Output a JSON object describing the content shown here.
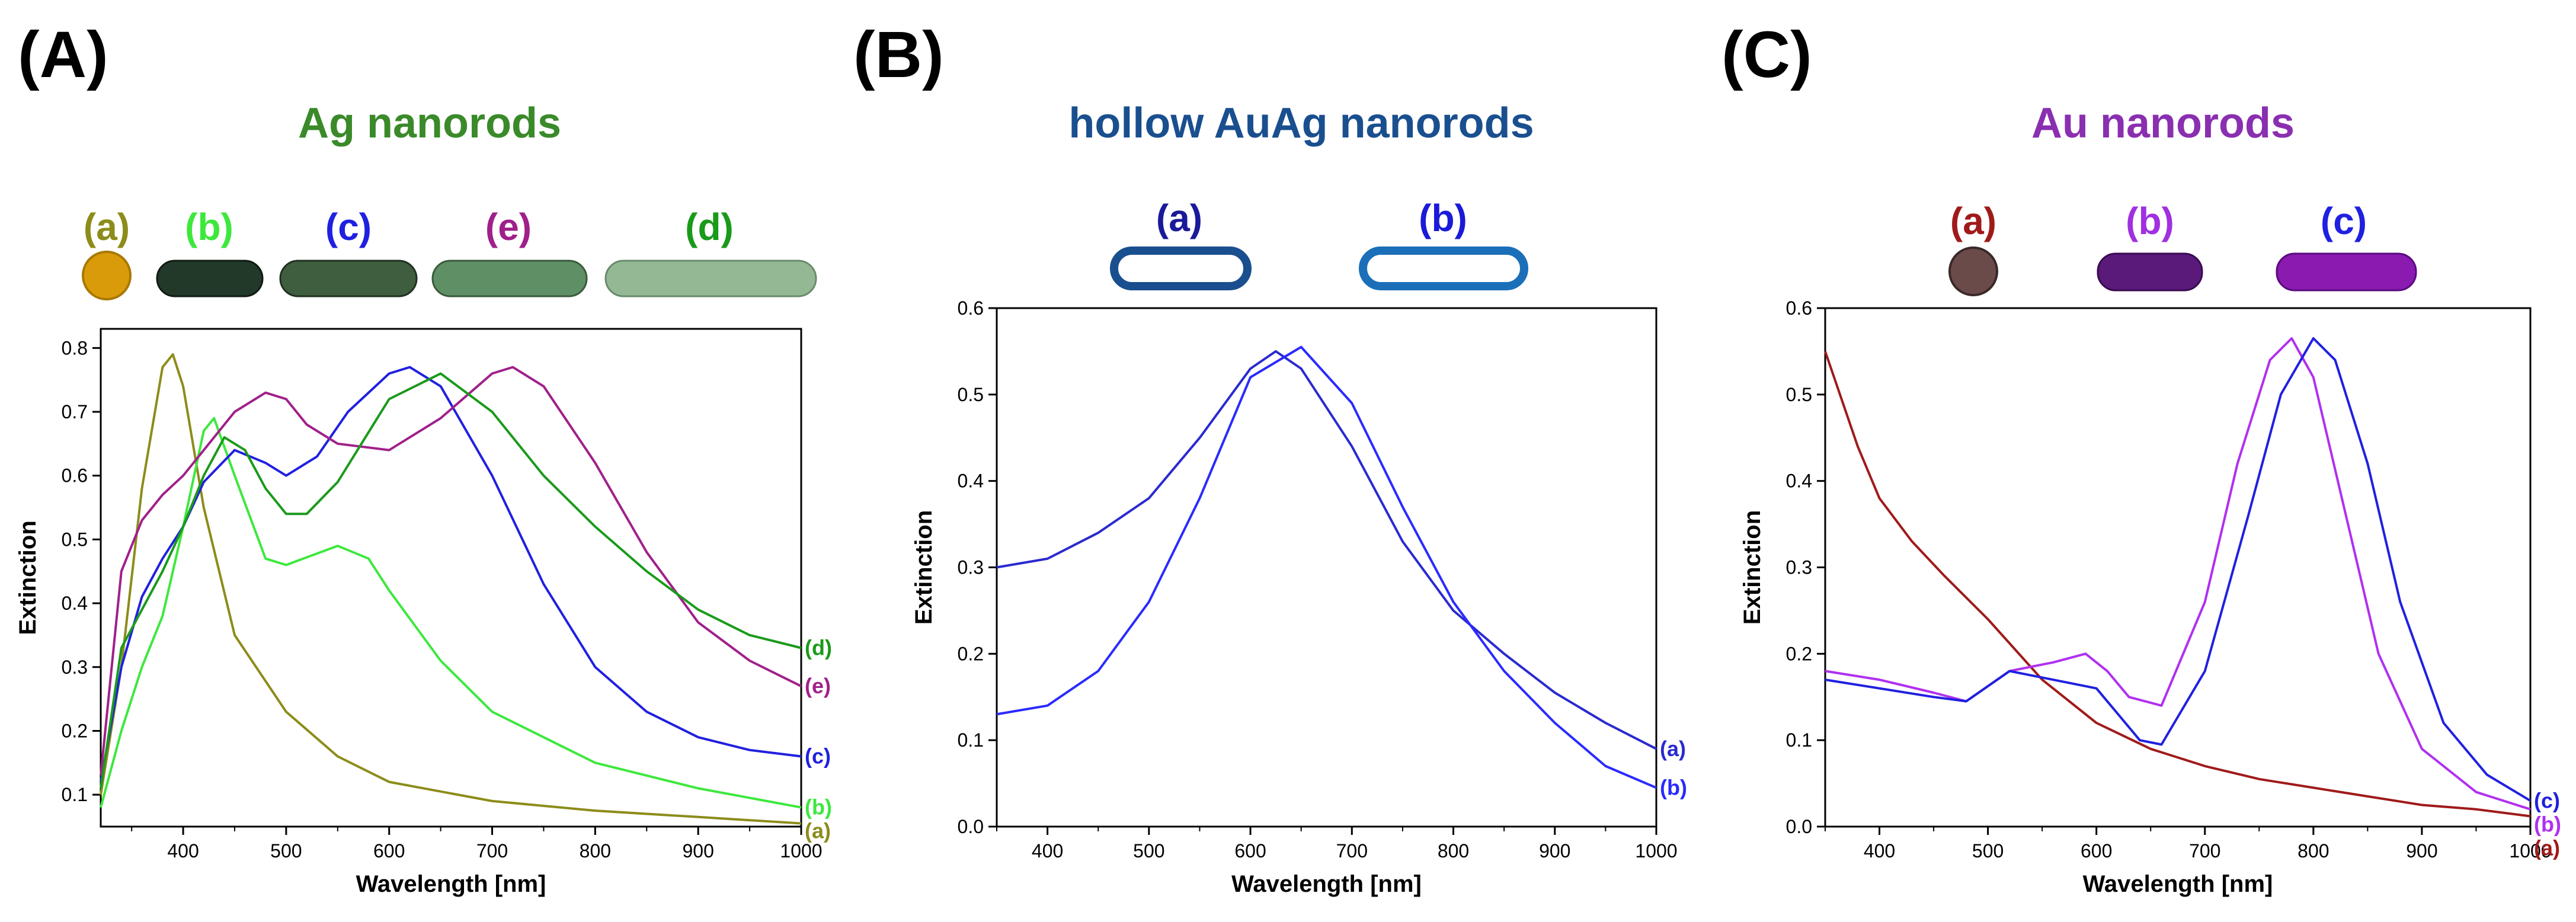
{
  "colors": {
    "ag_title": "#3a8a2a",
    "auag_title": "#1a4f8f",
    "au_title": "#8a2fb0"
  },
  "chart_data": [
    {
      "type": "line",
      "panel": "(A)",
      "title": "Ag nanorods",
      "xlabel": "Wavelength [nm]",
      "ylabel": "Extinction",
      "xlim": [
        320,
        1000
      ],
      "ylim": [
        0.05,
        0.83
      ],
      "xticks": [
        400,
        500,
        600,
        700,
        800,
        900,
        1000
      ],
      "yticks": [
        0.1,
        0.2,
        0.3,
        0.4,
        0.5,
        0.6,
        0.7,
        0.8
      ],
      "rods": [
        {
          "label": "(a)",
          "color": "#8c8c1a",
          "shape_color": "#d99b0a"
        },
        {
          "label": "(b)",
          "color": "#3de83d",
          "shape_color": "#22392a"
        },
        {
          "label": "(c)",
          "color": "#2020e0",
          "shape_color": "#3f5e3f"
        },
        {
          "label": "(e)",
          "color": "#a0208a",
          "shape_color": "#5f8f64"
        },
        {
          "label": "(d)",
          "color": "#1a9a1a",
          "shape_color": "#94b894"
        }
      ],
      "series": [
        {
          "name": "(a)",
          "color": "#8c8c1a",
          "x": [
            320,
            340,
            360,
            380,
            390,
            400,
            420,
            450,
            500,
            550,
            600,
            700,
            800,
            900,
            1000
          ],
          "y": [
            0.1,
            0.3,
            0.58,
            0.77,
            0.79,
            0.74,
            0.55,
            0.35,
            0.23,
            0.16,
            0.12,
            0.09,
            0.075,
            0.065,
            0.055
          ]
        },
        {
          "name": "(b)",
          "color": "#3de83d",
          "x": [
            320,
            340,
            360,
            380,
            400,
            420,
            430,
            450,
            480,
            500,
            550,
            580,
            600,
            650,
            700,
            800,
            900,
            1000
          ],
          "y": [
            0.08,
            0.2,
            0.3,
            0.38,
            0.52,
            0.67,
            0.69,
            0.6,
            0.47,
            0.46,
            0.49,
            0.47,
            0.42,
            0.31,
            0.23,
            0.15,
            0.11,
            0.08
          ]
        },
        {
          "name": "(c)",
          "color": "#2020e0",
          "x": [
            320,
            340,
            360,
            380,
            400,
            420,
            450,
            480,
            500,
            530,
            560,
            600,
            620,
            650,
            700,
            750,
            800,
            850,
            900,
            950,
            1000
          ],
          "y": [
            0.12,
            0.3,
            0.41,
            0.47,
            0.52,
            0.59,
            0.64,
            0.62,
            0.6,
            0.63,
            0.7,
            0.76,
            0.77,
            0.74,
            0.6,
            0.43,
            0.3,
            0.23,
            0.19,
            0.17,
            0.16
          ]
        },
        {
          "name": "(e)",
          "color": "#a0208a",
          "x": [
            320,
            340,
            360,
            380,
            400,
            430,
            450,
            480,
            500,
            520,
            550,
            600,
            650,
            700,
            720,
            750,
            800,
            850,
            900,
            950,
            1000
          ],
          "y": [
            0.13,
            0.45,
            0.53,
            0.57,
            0.6,
            0.66,
            0.7,
            0.73,
            0.72,
            0.68,
            0.65,
            0.64,
            0.69,
            0.76,
            0.77,
            0.74,
            0.62,
            0.48,
            0.37,
            0.31,
            0.27
          ]
        },
        {
          "name": "(d)",
          "color": "#1a9a1a",
          "x": [
            320,
            340,
            360,
            380,
            400,
            420,
            440,
            460,
            480,
            500,
            520,
            550,
            600,
            650,
            700,
            750,
            800,
            850,
            900,
            950,
            1000
          ],
          "y": [
            0.11,
            0.33,
            0.39,
            0.45,
            0.52,
            0.6,
            0.66,
            0.64,
            0.58,
            0.54,
            0.54,
            0.59,
            0.72,
            0.76,
            0.7,
            0.6,
            0.52,
            0.45,
            0.39,
            0.35,
            0.33
          ]
        }
      ]
    },
    {
      "type": "line",
      "panel": "(B)",
      "title": "hollow AuAg nanorods",
      "xlabel": "Wavelength [nm]",
      "ylabel": "Extinction",
      "xlim": [
        350,
        1000
      ],
      "ylim": [
        0.0,
        0.6
      ],
      "xticks": [
        400,
        500,
        600,
        700,
        800,
        900,
        1000
      ],
      "yticks": [
        0.0,
        0.1,
        0.2,
        0.3,
        0.4,
        0.5,
        0.6
      ],
      "rods": [
        {
          "label": "(a)",
          "color": "#1a1a9a",
          "shape_color": "#1a4f8f"
        },
        {
          "label": "(b)",
          "color": "#1a1ad8",
          "shape_color": "#1a6fb8"
        }
      ],
      "series": [
        {
          "name": "(a)",
          "color": "#2a2ad0",
          "x": [
            350,
            400,
            450,
            500,
            550,
            600,
            625,
            650,
            700,
            750,
            800,
            850,
            900,
            950,
            1000
          ],
          "y": [
            0.3,
            0.31,
            0.34,
            0.38,
            0.45,
            0.53,
            0.55,
            0.53,
            0.44,
            0.33,
            0.25,
            0.2,
            0.155,
            0.12,
            0.09
          ]
        },
        {
          "name": "(b)",
          "color": "#2a2aff",
          "x": [
            350,
            400,
            450,
            500,
            550,
            600,
            650,
            700,
            750,
            800,
            850,
            900,
            950,
            1000
          ],
          "y": [
            0.13,
            0.14,
            0.18,
            0.26,
            0.38,
            0.52,
            0.555,
            0.49,
            0.37,
            0.26,
            0.18,
            0.12,
            0.07,
            0.045
          ]
        }
      ]
    },
    {
      "type": "line",
      "panel": "(C)",
      "title": "Au nanorods",
      "xlabel": "Wavelength [nm]",
      "ylabel": "Extinction",
      "xlim": [
        350,
        1000
      ],
      "ylim": [
        0.0,
        0.6
      ],
      "xticks": [
        400,
        500,
        600,
        700,
        800,
        900,
        1000
      ],
      "yticks": [
        0.0,
        0.1,
        0.2,
        0.3,
        0.4,
        0.5,
        0.6
      ],
      "rods": [
        {
          "label": "(a)",
          "color": "#a01a1a",
          "shape_color": "#6b4a4a"
        },
        {
          "label": "(b)",
          "color": "#a030e0",
          "shape_color": "#5a1a7a"
        },
        {
          "label": "(c)",
          "color": "#2020e0",
          "shape_color": "#8a1ab0"
        }
      ],
      "series": [
        {
          "name": "(a)",
          "color": "#a01a1a",
          "x": [
            350,
            380,
            400,
            430,
            460,
            500,
            550,
            600,
            650,
            700,
            750,
            800,
            850,
            900,
            950,
            1000
          ],
          "y": [
            0.55,
            0.44,
            0.38,
            0.33,
            0.29,
            0.24,
            0.17,
            0.12,
            0.09,
            0.07,
            0.055,
            0.045,
            0.035,
            0.025,
            0.02,
            0.012
          ]
        },
        {
          "name": "(b)",
          "color": "#b030f0",
          "x": [
            350,
            400,
            450,
            480,
            520,
            560,
            590,
            610,
            630,
            660,
            700,
            730,
            760,
            780,
            800,
            830,
            860,
            900,
            950,
            1000
          ],
          "y": [
            0.18,
            0.17,
            0.155,
            0.145,
            0.18,
            0.19,
            0.2,
            0.18,
            0.15,
            0.14,
            0.26,
            0.42,
            0.54,
            0.565,
            0.52,
            0.36,
            0.2,
            0.09,
            0.04,
            0.02
          ]
        },
        {
          "name": "(c)",
          "color": "#2020e0",
          "x": [
            350,
            400,
            450,
            480,
            520,
            560,
            600,
            620,
            640,
            660,
            700,
            740,
            770,
            800,
            820,
            850,
            880,
            920,
            960,
            1000
          ],
          "y": [
            0.17,
            0.16,
            0.15,
            0.145,
            0.18,
            0.17,
            0.16,
            0.13,
            0.1,
            0.095,
            0.18,
            0.36,
            0.5,
            0.565,
            0.54,
            0.42,
            0.26,
            0.12,
            0.06,
            0.03
          ]
        }
      ]
    }
  ]
}
